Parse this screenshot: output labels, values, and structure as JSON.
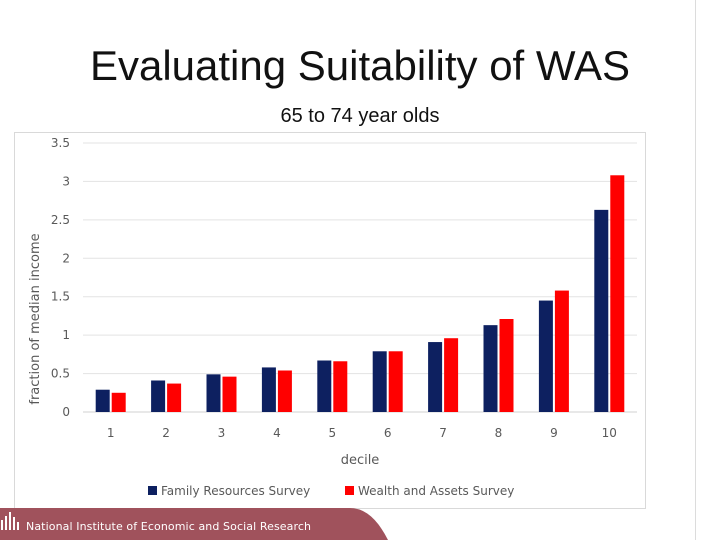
{
  "slide": {
    "title": "Evaluating Suitability of WAS",
    "subtitle": "65 to 74 year olds"
  },
  "footer": {
    "organisation": "National Institute of Economic and Social Research",
    "band_color": "#a0525c"
  },
  "chart_data": {
    "type": "bar",
    "title": "",
    "xlabel": "decile",
    "ylabel": "fraction of median income",
    "categories": [
      "1",
      "2",
      "3",
      "4",
      "5",
      "6",
      "7",
      "8",
      "9",
      "10"
    ],
    "ylim": [
      0,
      3.5
    ],
    "yticks": [
      "0",
      "0.5",
      "1",
      "1.5",
      "2",
      "2.5",
      "3",
      "3.5"
    ],
    "grid": true,
    "legend_position": "bottom",
    "series": [
      {
        "name": "Family Resources Survey",
        "color": "#0d2060",
        "values": [
          0.29,
          0.41,
          0.49,
          0.58,
          0.67,
          0.79,
          0.91,
          1.13,
          1.45,
          2.63
        ]
      },
      {
        "name": "Wealth and Assets Survey",
        "color": "#ff0000",
        "values": [
          0.25,
          0.37,
          0.46,
          0.54,
          0.66,
          0.79,
          0.96,
          1.21,
          1.58,
          3.08
        ]
      }
    ]
  }
}
